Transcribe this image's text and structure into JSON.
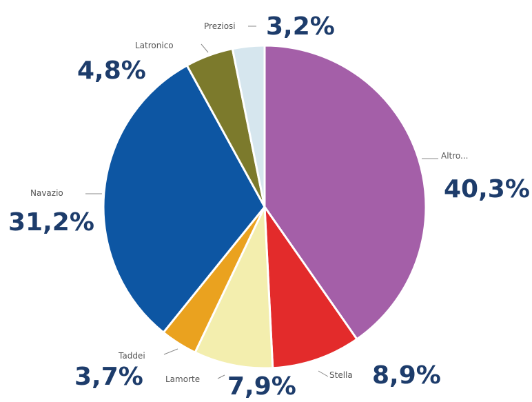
{
  "chart_data": {
    "type": "pie",
    "title": "",
    "unit": "%",
    "slices": [
      {
        "name": "Altro...",
        "value": 40.3,
        "label": "40,3%",
        "color": "#a45fa8"
      },
      {
        "name": "Stella",
        "value": 8.9,
        "label": "8,9%",
        "color": "#e32b2b"
      },
      {
        "name": "Lamorte",
        "value": 7.9,
        "label": "7,9%",
        "color": "#f3eeae"
      },
      {
        "name": "Taddei",
        "value": 3.7,
        "label": "3,7%",
        "color": "#eaa21f"
      },
      {
        "name": "Navazio",
        "value": 31.2,
        "label": "31,2%",
        "color": "#0d56a3"
      },
      {
        "name": "Latronico",
        "value": 4.8,
        "label": "4,8%",
        "color": "#7c7a2c"
      },
      {
        "name": "Preziosi",
        "value": 3.2,
        "label": "3,2%",
        "color": "#d6e6ee"
      }
    ],
    "label_color": "#1d3c6b",
    "name_color": "#555555",
    "legend": "none"
  }
}
